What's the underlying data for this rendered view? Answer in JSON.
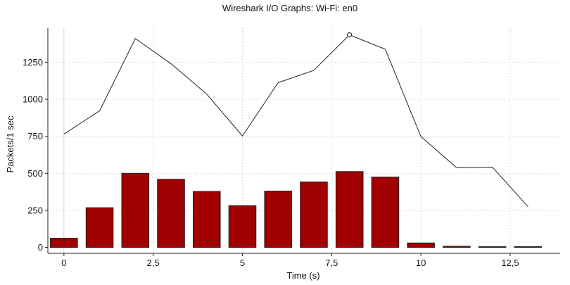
{
  "chart_data": {
    "type": "bar",
    "title": "Wireshark I/O Graphs: Wi-Fi: en0",
    "xlabel": "Time (s)",
    "ylabel": "Packets/1 sec",
    "xlim": [
      -0.45,
      13.9
    ],
    "ylim": [
      -40,
      1480
    ],
    "x_ticks": [
      0,
      2.5,
      5,
      7.5,
      10,
      12.5
    ],
    "x_tick_labels": [
      "0",
      "2,5",
      "5",
      "7,5",
      "10",
      "12,5"
    ],
    "y_ticks": [
      0,
      250,
      500,
      750,
      1000,
      1250
    ],
    "y_tick_labels": [
      "0",
      "250",
      "500",
      "750",
      "1000",
      "1250"
    ],
    "grid": true,
    "series": [
      {
        "kind": "bar",
        "color": "#a00000",
        "x": [
          0,
          1,
          2,
          3,
          4,
          5,
          6,
          7,
          8,
          9,
          10,
          11,
          12,
          13
        ],
        "values": [
          62,
          268,
          500,
          460,
          378,
          282,
          380,
          442,
          512,
          475,
          30,
          8,
          5,
          5
        ]
      },
      {
        "kind": "line",
        "color": "#222222",
        "x": [
          0,
          1,
          2,
          3,
          4,
          5,
          6,
          7,
          8,
          9,
          10,
          11,
          12,
          13
        ],
        "values": [
          765,
          922,
          1410,
          1240,
          1035,
          752,
          1112,
          1195,
          1435,
          1338,
          748,
          538,
          542,
          275
        ]
      }
    ],
    "marker": {
      "x": 8,
      "y": 1435
    }
  }
}
